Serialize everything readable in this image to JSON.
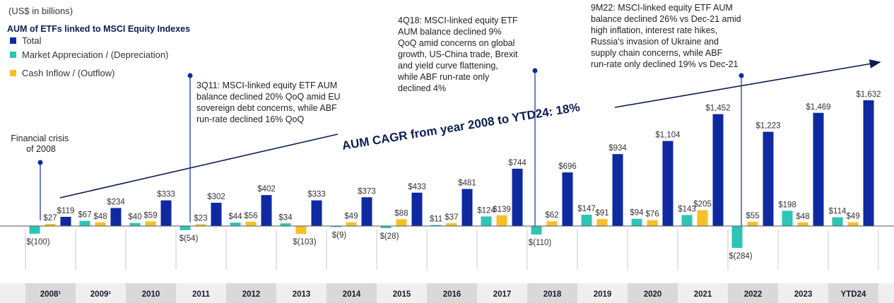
{
  "chart_data": {
    "type": "bar",
    "unit_label": "(US$ in billions)",
    "legend_title": "AUM of ETFs linked to MSCI Equity Indexes",
    "categories": [
      "2008¹",
      "2009¹",
      "2010",
      "2011",
      "2012",
      "2013",
      "2014",
      "2015",
      "2016",
      "2017",
      "2018",
      "2019",
      "2020",
      "2021",
      "2022",
      "2023",
      "YTD24"
    ],
    "series": [
      {
        "name": "Market Appreciation / (Depreciation)",
        "color": "#2ec4b6",
        "values": [
          -100,
          67,
          40,
          -54,
          44,
          34,
          -9,
          -28,
          11,
          124,
          -110,
          147,
          94,
          143,
          -284,
          198,
          114
        ],
        "labels": [
          "$(100)",
          "$67",
          "$40",
          "$(54)",
          "$44",
          "$34",
          "$(9)",
          "$(28)",
          "$11",
          "$124",
          "$(110)",
          "$147",
          "$94",
          "$143",
          "$(284)",
          "$198",
          "$114"
        ]
      },
      {
        "name": "Cash Inflow / (Outflow)",
        "color": "#f6c026",
        "values": [
          27,
          48,
          59,
          23,
          56,
          -103,
          49,
          88,
          37,
          139,
          62,
          91,
          76,
          205,
          55,
          48,
          49
        ],
        "labels": [
          "$27",
          "$48",
          "$59",
          "$23",
          "$56",
          "$(103)",
          "$49",
          "$88",
          "$37",
          "$139",
          "$62",
          "$91",
          "$76",
          "$205",
          "$55",
          "$48",
          "$49"
        ]
      },
      {
        "name": "Total",
        "color": "#0f2aa0",
        "values": [
          119,
          234,
          333,
          302,
          402,
          333,
          373,
          433,
          481,
          744,
          696,
          934,
          1104,
          1452,
          1223,
          1469,
          1632
        ],
        "labels": [
          "$119",
          "$234",
          "$333",
          "$302",
          "$402",
          "$333",
          "$373",
          "$433",
          "$481",
          "$744",
          "$696",
          "$934",
          "$1,104",
          "$1,452",
          "$1,223",
          "$1,469",
          "$1,632"
        ]
      }
    ],
    "ylim": [
      -284,
      1632
    ],
    "trend_label": "AUM CAGR from year 2008 to YTD24: 18%",
    "annotations": {
      "crisis": [
        "Financial crisis",
        "of 2008"
      ],
      "q311": [
        "3Q11: MSCI-linked equity ETF AUM",
        "balance declined 20% QoQ amid EU",
        "sovereign debt concerns, while ABF",
        "run-rate declined 16% QoQ"
      ],
      "q418": [
        "4Q18: MSCI-linked equity ETF",
        "AUM balance declined 9%",
        "QoQ amid concerns on global",
        "growth, US-China trade, Brexit",
        "and yield curve flattening,",
        "while ABF run-rate only",
        "declined 4%"
      ],
      "m922": [
        "9M22: MSCI-linked equity ETF AUM",
        "balance declined 26% vs Dec-21 amid",
        "high inflation, interest rate hikes,",
        "Russia's invasion of Ukraine and",
        "supply chain concerns, while ABF",
        "run-rate only declined 19% vs Dec-21"
      ]
    },
    "colors": {
      "axis": "#555555",
      "band_dark": "#d9d9d9",
      "band_light": "#efefef",
      "divider": "#c8c8c8",
      "annotation": "#0f2aa0"
    }
  }
}
